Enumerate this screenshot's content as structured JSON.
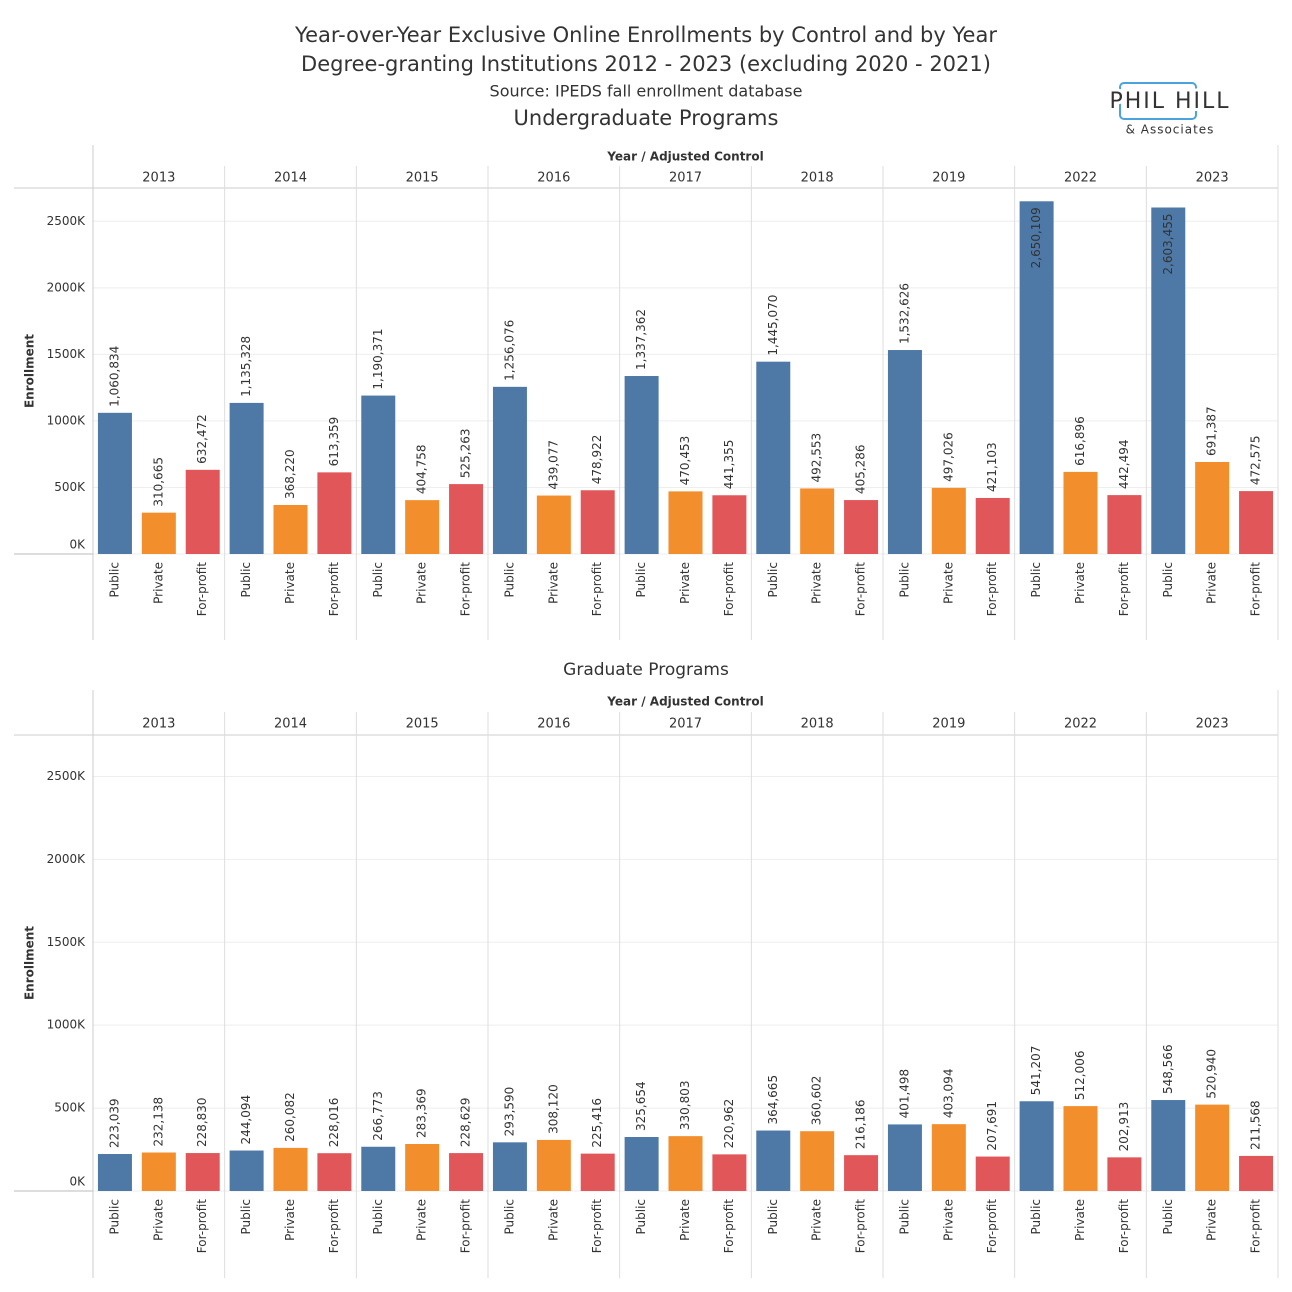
{
  "header": {
    "title": "Year-over-Year Exclusive Online Enrollments by Control and by Year",
    "subtitle": "Degree-granting Institutions 2012 - 2023 (excluding 2020 - 2021)",
    "source": "Source: IPEDS fall enrollment database"
  },
  "logo": {
    "name": "PHIL HILL",
    "tagline": "& Associates"
  },
  "chart_data": [
    {
      "type": "bar",
      "title": "Undergraduate Programs",
      "group_label": "Year / Adjusted Control",
      "y_label": "Enrollment",
      "groups": [
        "2013",
        "2014",
        "2015",
        "2016",
        "2017",
        "2018",
        "2019",
        "2022",
        "2023"
      ],
      "ylim": [
        0,
        2750000
      ],
      "yticks": [
        {
          "value": 0,
          "label": "0K"
        },
        {
          "value": 500000,
          "label": "500K"
        },
        {
          "value": 1000000,
          "label": "1000K"
        },
        {
          "value": 1500000,
          "label": "1500K"
        },
        {
          "value": 2000000,
          "label": "2000K"
        },
        {
          "value": 2500000,
          "label": "2500K"
        }
      ],
      "grid": true,
      "series": [
        {
          "name": "Public",
          "color": "#4e79a7",
          "values": [
            1060834,
            1135328,
            1190371,
            1256076,
            1337362,
            1445070,
            1532626,
            2650109,
            2603455
          ],
          "value_labels": [
            "1,060,834",
            "1,135,328",
            "1,190,371",
            "1,256,076",
            "1,337,362",
            "1,445,070",
            "1,532,626",
            "2,650,109",
            "2,603,455"
          ]
        },
        {
          "name": "Private",
          "color": "#f28e2b",
          "values": [
            310665,
            368220,
            404758,
            439077,
            470453,
            492553,
            497026,
            616896,
            691387
          ],
          "value_labels": [
            "310,665",
            "368,220",
            "404,758",
            "439,077",
            "470,453",
            "492,553",
            "497,026",
            "616,896",
            "691,387"
          ]
        },
        {
          "name": "For-profit",
          "color": "#e15759",
          "values": [
            632472,
            613359,
            525263,
            478922,
            441355,
            405286,
            421103,
            442494,
            472575
          ],
          "value_labels": [
            "632,472",
            "613,359",
            "525,263",
            "478,922",
            "441,355",
            "405,286",
            "421,103",
            "442,494",
            "472,575"
          ]
        }
      ]
    },
    {
      "type": "bar",
      "title": "Graduate Programs",
      "group_label": "Year / Adjusted Control",
      "y_label": "Enrollment",
      "groups": [
        "2013",
        "2014",
        "2015",
        "2016",
        "2017",
        "2018",
        "2019",
        "2022",
        "2023"
      ],
      "ylim": [
        0,
        2750000
      ],
      "yticks": [
        {
          "value": 0,
          "label": "0K"
        },
        {
          "value": 500000,
          "label": "500K"
        },
        {
          "value": 1000000,
          "label": "1000K"
        },
        {
          "value": 1500000,
          "label": "1500K"
        },
        {
          "value": 2000000,
          "label": "2000K"
        },
        {
          "value": 2500000,
          "label": "2500K"
        }
      ],
      "grid": true,
      "series": [
        {
          "name": "Public",
          "color": "#4e79a7",
          "values": [
            223039,
            244094,
            266773,
            293590,
            325654,
            364665,
            401498,
            541207,
            548566
          ],
          "value_labels": [
            "223,039",
            "244,094",
            "266,773",
            "293,590",
            "325,654",
            "364,665",
            "401,498",
            "541,207",
            "548,566"
          ]
        },
        {
          "name": "Private",
          "color": "#f28e2b",
          "values": [
            232138,
            260082,
            283369,
            308120,
            330803,
            360602,
            403094,
            512006,
            520940
          ],
          "value_labels": [
            "232,138",
            "260,082",
            "283,369",
            "308,120",
            "330,803",
            "360,602",
            "403,094",
            "512,006",
            "520,940"
          ]
        },
        {
          "name": "For-profit",
          "color": "#e15759",
          "values": [
            228830,
            228016,
            228629,
            225416,
            220962,
            216186,
            207691,
            202913,
            211568
          ],
          "value_labels": [
            "228,830",
            "228,016",
            "228,629",
            "225,416",
            "220,962",
            "216,186",
            "207,691",
            "202,913",
            "211,568"
          ]
        }
      ]
    }
  ]
}
